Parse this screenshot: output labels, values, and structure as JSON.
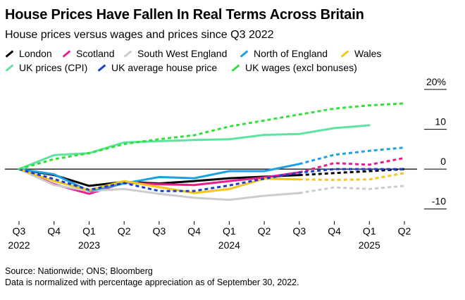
{
  "chart_data": {
    "type": "line",
    "title": "House Prices Have Fallen In Real Terms Across Britain",
    "subtitle": "House prices versus wages and prices since Q3 2022",
    "x": [
      "Q3 2022",
      "Q4 2022",
      "Q1 2023",
      "Q2 2023",
      "Q3 2023",
      "Q4 2023",
      "Q1 2024",
      "Q2 2024",
      "Q3 2024",
      "Q4 2024",
      "Q1 2025",
      "Q2 2025"
    ],
    "x_tick_labels": [
      "Q3",
      "Q4",
      "Q1",
      "Q2",
      "Q3",
      "Q4",
      "Q1",
      "Q2",
      "Q3",
      "Q4",
      "Q1",
      "Q2"
    ],
    "x_year_labels": [
      {
        "label": "2022",
        "index": 0
      },
      {
        "label": "2023",
        "index": 2
      },
      {
        "label": "2024",
        "index": 6
      },
      {
        "label": "2025",
        "index": 10
      }
    ],
    "ylim": [
      -12,
      20
    ],
    "y_ticks": [
      {
        "value": 20,
        "label": "20%"
      },
      {
        "value": 10,
        "label": "10"
      },
      {
        "value": 0,
        "label": "0"
      },
      {
        "value": -10,
        "label": "-10"
      }
    ],
    "xlabel": "",
    "ylabel": "",
    "grid": false,
    "zero_line": true,
    "legend_position": "top",
    "series": [
      {
        "name": "London",
        "color": "#000000",
        "dashed_from_index": 8,
        "values": [
          0,
          -1.5,
          -4.2,
          -3.2,
          -3.6,
          -3.0,
          -2.3,
          -1.9,
          -1.5,
          -1.0,
          -0.5,
          0.0
        ]
      },
      {
        "name": "Scotland",
        "color": "#e91e8c",
        "dashed_from_index": 8,
        "values": [
          0,
          -3.8,
          -6.2,
          -3.4,
          -3.8,
          -4.0,
          -3.0,
          -2.1,
          -0.8,
          1.5,
          1.1,
          2.8
        ]
      },
      {
        "name": "South West England",
        "color": "#cccccc",
        "dashed_from_index": 8,
        "values": [
          0,
          -4.0,
          -5.5,
          -5.0,
          -6.2,
          -7.2,
          -7.7,
          -6.7,
          -6.0,
          -4.6,
          -5.0,
          -4.2
        ]
      },
      {
        "name": "North of England",
        "color": "#1da1e2",
        "dashed_from_index": 8,
        "values": [
          0,
          -1.3,
          -5.5,
          -3.6,
          -2.0,
          -2.3,
          -0.5,
          -0.5,
          1.3,
          3.6,
          4.6,
          5.4
        ]
      },
      {
        "name": "Wales",
        "color": "#f5c518",
        "dashed_from_index": 8,
        "values": [
          0,
          -3.0,
          -5.3,
          -3.0,
          -4.5,
          -6.0,
          -5.0,
          -2.4,
          -2.6,
          -2.7,
          -2.6,
          -1.0
        ]
      },
      {
        "name": "UK prices (CPI)",
        "color": "#5fe3a1",
        "dashed_from_index": 11,
        "values": [
          0,
          3.5,
          4.0,
          6.7,
          7.0,
          7.3,
          7.5,
          8.6,
          8.8,
          10.3,
          11.0,
          null
        ]
      },
      {
        "name": "UK average house price",
        "color": "#1a3ecc",
        "dashed_from_index": 0,
        "values": [
          0,
          -2.5,
          -5.2,
          -3.5,
          -5.5,
          -5.5,
          -4.1,
          -2.4,
          -0.9,
          0.0,
          0.0,
          0.0
        ]
      },
      {
        "name": "UK wages (excl bonuses)",
        "color": "#33e03a",
        "dashed_from_index": 0,
        "values": [
          0,
          2.5,
          4.0,
          6.3,
          7.5,
          8.5,
          10.7,
          12.2,
          13.7,
          15.2,
          16.0,
          16.5
        ]
      }
    ],
    "source": "Source: Nationwide; ONS; Bloomberg",
    "note": "Data is normalized with percentage appreciation as of September 30, 2022."
  }
}
